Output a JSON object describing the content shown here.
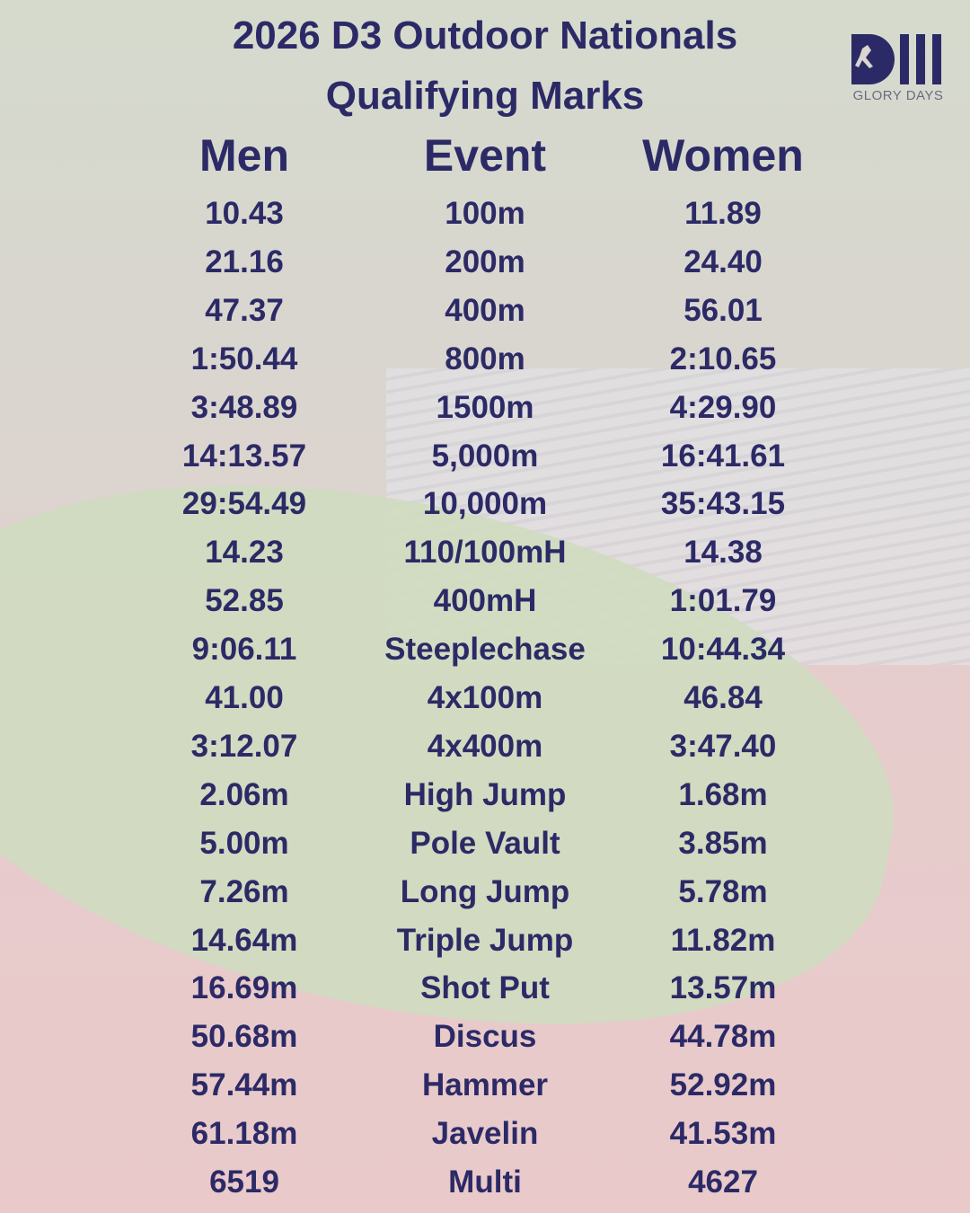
{
  "header": {
    "title_line1": "2026 D3 Outdoor Nationals",
    "title_line2": "Qualifying Marks"
  },
  "logo": {
    "label": "GLORY DAYS"
  },
  "table": {
    "columns": [
      "Men",
      "Event",
      "Women"
    ],
    "rows": [
      [
        "10.43",
        "100m",
        "11.89"
      ],
      [
        "21.16",
        "200m",
        "24.40"
      ],
      [
        "47.37",
        "400m",
        "56.01"
      ],
      [
        "1:50.44",
        "800m",
        "2:10.65"
      ],
      [
        "3:48.89",
        "1500m",
        "4:29.90"
      ],
      [
        "14:13.57",
        "5,000m",
        "16:41.61"
      ],
      [
        "29:54.49",
        "10,000m",
        "35:43.15"
      ],
      [
        "14.23",
        "110/100mH",
        "14.38"
      ],
      [
        "52.85",
        "400mH",
        "1:01.79"
      ],
      [
        "9:06.11",
        "Steeplechase",
        "10:44.34"
      ],
      [
        "41.00",
        "4x100m",
        "46.84"
      ],
      [
        "3:12.07",
        "4x400m",
        "3:47.40"
      ],
      [
        "2.06m",
        "High Jump",
        "1.68m"
      ],
      [
        "5.00m",
        "Pole Vault",
        "3.85m"
      ],
      [
        "7.26m",
        "Long Jump",
        "5.78m"
      ],
      [
        "14.64m",
        "Triple Jump",
        "11.82m"
      ],
      [
        "16.69m",
        "Shot Put",
        "13.57m"
      ],
      [
        "50.68m",
        "Discus",
        "44.78m"
      ],
      [
        "57.44m",
        "Hammer",
        "52.92m"
      ],
      [
        "61.18m",
        "Javelin",
        "41.53m"
      ],
      [
        "6519",
        "Multi",
        "4627"
      ]
    ]
  }
}
